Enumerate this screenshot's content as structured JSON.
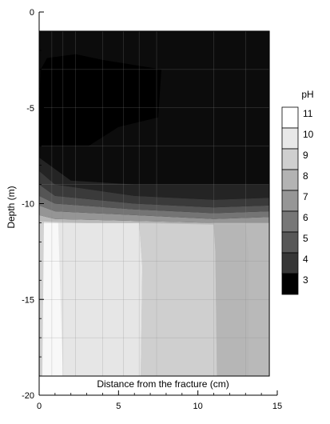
{
  "chart_data": {
    "type": "heatmap",
    "xlabel": "Distance from the fracture (cm)",
    "ylabel": "Depth (m)",
    "xlim": [
      0,
      15
    ],
    "ylim": [
      -20,
      0
    ],
    "x_ticks": [
      "0",
      "5",
      "10",
      "15"
    ],
    "y_ticks": [
      "0",
      "-5",
      "-10",
      "-15",
      "-20"
    ],
    "x_tick_values": [
      0,
      5,
      10,
      15
    ],
    "y_tick_values": [
      0,
      -5,
      -10,
      -15,
      -20
    ],
    "domain": {
      "x": [
        0,
        14.5
      ],
      "y": [
        -19,
        -1
      ]
    },
    "legend": {
      "title": "pH",
      "placement": "right",
      "levels": [
        "11",
        "10",
        "9",
        "8",
        "7",
        "6",
        "5",
        "4",
        "3"
      ],
      "colors": [
        "#ffffff",
        "#e8e8e8",
        "#cfcfcf",
        "#b3b3b3",
        "#969696",
        "#777777",
        "#575757",
        "#363636",
        "#000000"
      ]
    },
    "background_color": "#0c0c0c",
    "zones": [
      {
        "pH": 3,
        "color": "#000000",
        "points": [
          [
            0,
            -5
          ],
          [
            0.1,
            -3
          ],
          [
            0.5,
            -2.4
          ],
          [
            2.3,
            -2.2
          ],
          [
            4,
            -2.5
          ],
          [
            7.7,
            -3
          ],
          [
            7.5,
            -5.5
          ],
          [
            5,
            -6
          ],
          [
            3.1,
            -7
          ],
          [
            0,
            -7
          ]
        ]
      },
      {
        "pH": 4,
        "color": "#242424",
        "points": [
          [
            0,
            -7.6
          ],
          [
            1,
            -8.2
          ],
          [
            2,
            -8.8
          ],
          [
            6,
            -9
          ],
          [
            11,
            -9
          ],
          [
            14.5,
            -9
          ],
          [
            14.5,
            -9.7
          ],
          [
            11,
            -9.8
          ],
          [
            6,
            -9.6
          ],
          [
            1,
            -9
          ],
          [
            0,
            -8.3
          ]
        ]
      },
      {
        "pH": 5,
        "color": "#3a3a3a",
        "points": [
          [
            0,
            -8.3
          ],
          [
            1,
            -9
          ],
          [
            6,
            -9.6
          ],
          [
            11,
            -9.8
          ],
          [
            14.5,
            -9.7
          ],
          [
            14.5,
            -10.1
          ],
          [
            11,
            -10.2
          ],
          [
            6,
            -10
          ],
          [
            1,
            -9.6
          ],
          [
            0,
            -9
          ]
        ]
      },
      {
        "pH": 6,
        "color": "#555555",
        "points": [
          [
            0,
            -9
          ],
          [
            1,
            -9.6
          ],
          [
            6,
            -10
          ],
          [
            11,
            -10.2
          ],
          [
            14.5,
            -10.1
          ],
          [
            14.5,
            -10.4
          ],
          [
            11,
            -10.5
          ],
          [
            6,
            -10.3
          ],
          [
            1,
            -10
          ],
          [
            0,
            -9.6
          ]
        ]
      },
      {
        "pH": 7,
        "color": "#747474",
        "points": [
          [
            0,
            -9.6
          ],
          [
            1,
            -10
          ],
          [
            6,
            -10.3
          ],
          [
            11,
            -10.5
          ],
          [
            14.5,
            -10.4
          ],
          [
            14.5,
            -10.7
          ],
          [
            11,
            -10.8
          ],
          [
            6,
            -10.6
          ],
          [
            1,
            -10.4
          ],
          [
            0,
            -10.1
          ]
        ]
      },
      {
        "pH": 8,
        "color": "#959595",
        "points": [
          [
            0,
            -10.1
          ],
          [
            1,
            -10.4
          ],
          [
            6,
            -10.6
          ],
          [
            11,
            -10.8
          ],
          [
            14.5,
            -10.7
          ],
          [
            14.5,
            -11
          ],
          [
            11,
            -11
          ],
          [
            6,
            -10.9
          ],
          [
            1,
            -10.8
          ],
          [
            0,
            -10.6
          ]
        ]
      },
      {
        "pH": 9,
        "color": "#b9b9b9",
        "points": [
          [
            0,
            -10.6
          ],
          [
            1,
            -10.8
          ],
          [
            6,
            -10.9
          ],
          [
            11,
            -11
          ],
          [
            14.5,
            -11
          ],
          [
            14.5,
            -19
          ],
          [
            0,
            -19
          ]
        ]
      },
      {
        "pH": 10,
        "color": "#e6e6e6",
        "points": [
          [
            0.1,
            -10.95
          ],
          [
            3,
            -11
          ],
          [
            6.3,
            -11
          ],
          [
            6.5,
            -13.3
          ],
          [
            6.4,
            -19
          ],
          [
            0.1,
            -19
          ]
        ]
      },
      {
        "pH": 11,
        "color": "#f8f8f8",
        "points": [
          [
            0.1,
            -10.95
          ],
          [
            1.2,
            -11
          ],
          [
            1.5,
            -19
          ],
          [
            0.1,
            -19
          ]
        ]
      },
      {
        "pH": 10,
        "color": "#d2d2d2",
        "points": [
          [
            0.05,
            -10.95
          ],
          [
            0.3,
            -10.95
          ],
          [
            0.2,
            -19
          ],
          [
            0.05,
            -19
          ]
        ]
      },
      {
        "pH": 9,
        "color": "#cfcfcf",
        "points": [
          [
            6.3,
            -11
          ],
          [
            11,
            -11.1
          ],
          [
            11.1,
            -12.5
          ],
          [
            11.2,
            -19
          ],
          [
            6.4,
            -19
          ],
          [
            6.5,
            -13.3
          ]
        ]
      },
      {
        "pH": 8,
        "color": "#b6b6b6",
        "points": [
          [
            11,
            -11.1
          ],
          [
            13,
            -11.1
          ],
          [
            13.2,
            -12.5
          ],
          [
            13.2,
            -19
          ],
          [
            11.2,
            -19
          ],
          [
            11.1,
            -12.5
          ]
        ]
      }
    ],
    "grid_lines": {
      "x": [
        0,
        0.8,
        1.5,
        2.3,
        4,
        5.3,
        6.3,
        7.4,
        11,
        13,
        14.5
      ],
      "y": [
        -1,
        -3,
        -5,
        -7,
        -9,
        -11,
        -13,
        -15,
        -17,
        -19
      ]
    }
  }
}
